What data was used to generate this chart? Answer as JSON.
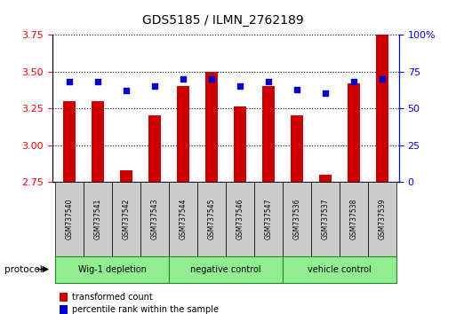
{
  "title": "GDS5185 / ILMN_2762189",
  "samples": [
    "GSM737540",
    "GSM737541",
    "GSM737542",
    "GSM737543",
    "GSM737544",
    "GSM737545",
    "GSM737546",
    "GSM737547",
    "GSM737536",
    "GSM737537",
    "GSM737538",
    "GSM737539"
  ],
  "bar_values": [
    3.3,
    3.3,
    2.83,
    3.2,
    3.4,
    3.5,
    3.26,
    3.4,
    3.2,
    2.8,
    3.42,
    3.75
  ],
  "percentile_values": [
    68,
    68,
    62,
    65,
    70,
    70,
    65,
    68,
    63,
    60,
    68,
    70
  ],
  "bar_color": "#cc0000",
  "dot_color": "#0000cc",
  "ylim": [
    2.75,
    3.75
  ],
  "yticks": [
    2.75,
    3.0,
    3.25,
    3.5,
    3.75
  ],
  "y2lim": [
    0,
    100
  ],
  "y2ticks": [
    0,
    25,
    50,
    75,
    100
  ],
  "y2ticklabels": [
    "0",
    "25",
    "50",
    "75",
    "100%"
  ],
  "legend_items": [
    {
      "label": "transformed count",
      "color": "#cc0000"
    },
    {
      "label": "percentile rank within the sample",
      "color": "#0000cc"
    }
  ],
  "protocol_label": "protocol",
  "group_spans": [
    [
      0,
      4,
      "Wig-1 depletion"
    ],
    [
      4,
      8,
      "negative control"
    ],
    [
      8,
      12,
      "vehicle control"
    ]
  ],
  "group_color": "#90ee90",
  "group_border_color": "#228B22",
  "label_bg_color": "#cccccc",
  "bar_width": 0.45
}
